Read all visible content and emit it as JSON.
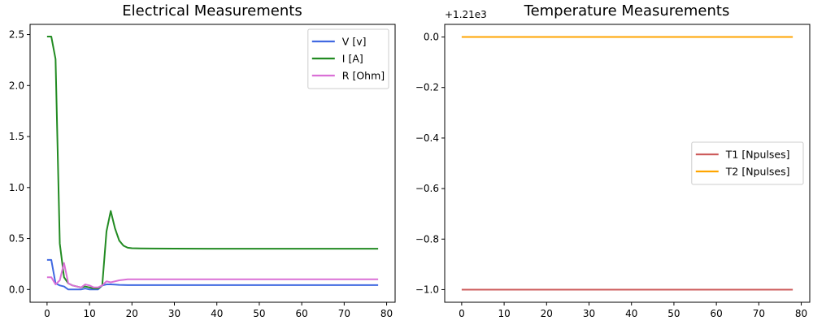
{
  "figure": {
    "background": "#ffffff"
  },
  "chart_data": [
    {
      "type": "line",
      "title": "Electrical Measurements",
      "xlabel": "",
      "ylabel": "",
      "xlim": [
        -4,
        82
      ],
      "ylim": [
        -0.125,
        2.6
      ],
      "xticks": [
        0,
        10,
        20,
        30,
        40,
        50,
        60,
        70,
        80
      ],
      "yticks": [
        0.0,
        0.5,
        1.0,
        1.5,
        2.0,
        2.5
      ],
      "ytick_labels": [
        "0.0",
        "0.5",
        "1.0",
        "1.5",
        "2.0",
        "2.5"
      ],
      "legend_position": "top-right",
      "grid": false,
      "series": [
        {
          "name": "V [v]",
          "color": "#4169e1",
          "x": [
            0,
            1,
            2,
            3,
            4,
            5,
            6,
            7,
            8,
            9,
            10,
            11,
            12,
            13,
            14,
            15,
            16,
            17,
            18,
            19,
            20,
            25,
            30,
            40,
            50,
            60,
            70,
            78
          ],
          "values": [
            0.29,
            0.29,
            0.06,
            0.04,
            0.03,
            0.0,
            0.0,
            0.0,
            0.0,
            0.01,
            0.0,
            0.0,
            0.0,
            0.04,
            0.05,
            0.05,
            0.048,
            0.045,
            0.044,
            0.043,
            0.043,
            0.043,
            0.043,
            0.043,
            0.043,
            0.043,
            0.043,
            0.043
          ]
        },
        {
          "name": "I [A]",
          "color": "#228b22",
          "x": [
            0,
            1,
            2,
            3,
            4,
            5,
            6,
            7,
            8,
            9,
            10,
            11,
            12,
            13,
            14,
            15,
            16,
            17,
            18,
            19,
            20,
            22,
            25,
            30,
            40,
            50,
            60,
            70,
            78
          ],
          "values": [
            2.48,
            2.48,
            2.26,
            0.45,
            0.12,
            0.06,
            0.04,
            0.03,
            0.02,
            0.03,
            0.02,
            0.01,
            0.01,
            0.04,
            0.57,
            0.77,
            0.6,
            0.48,
            0.43,
            0.41,
            0.405,
            0.403,
            0.402,
            0.401,
            0.4,
            0.4,
            0.4,
            0.4,
            0.4
          ]
        },
        {
          "name": "R [Ohm]",
          "color": "#da70d6",
          "x": [
            0,
            1,
            2,
            3,
            4,
            5,
            6,
            7,
            8,
            9,
            10,
            11,
            12,
            13,
            14,
            15,
            16,
            17,
            18,
            19,
            20,
            25,
            30,
            40,
            50,
            60,
            70,
            78
          ],
          "values": [
            0.12,
            0.12,
            0.05,
            0.09,
            0.26,
            0.06,
            0.04,
            0.03,
            0.02,
            0.05,
            0.04,
            0.02,
            0.02,
            0.04,
            0.08,
            0.07,
            0.08,
            0.09,
            0.095,
            0.1,
            0.1,
            0.1,
            0.1,
            0.1,
            0.1,
            0.1,
            0.1,
            0.1
          ]
        }
      ]
    },
    {
      "type": "line",
      "title": "Temperature Measurements",
      "xlabel": "",
      "ylabel": "",
      "y_offset_label": "+1.21e3",
      "xlim": [
        -4,
        82
      ],
      "ylim": [
        -1.05,
        0.05
      ],
      "xticks": [
        0,
        10,
        20,
        30,
        40,
        50,
        60,
        70,
        80
      ],
      "yticks": [
        0.0,
        -0.2,
        -0.4,
        -0.6,
        -0.8,
        -1.0
      ],
      "ytick_labels": [
        "0.0",
        "−0.2",
        "−0.4",
        "−0.6",
        "−0.8",
        "−1.0"
      ],
      "legend_position": "center-right",
      "grid": false,
      "series": [
        {
          "name": "T1 [Npulses]",
          "color": "#cd5c5c",
          "x": [
            0,
            78
          ],
          "values": [
            -1.0,
            -1.0
          ]
        },
        {
          "name": "T2 [Npulses]",
          "color": "#ffa500",
          "x": [
            0,
            78
          ],
          "values": [
            0.0,
            0.0
          ]
        }
      ]
    }
  ]
}
